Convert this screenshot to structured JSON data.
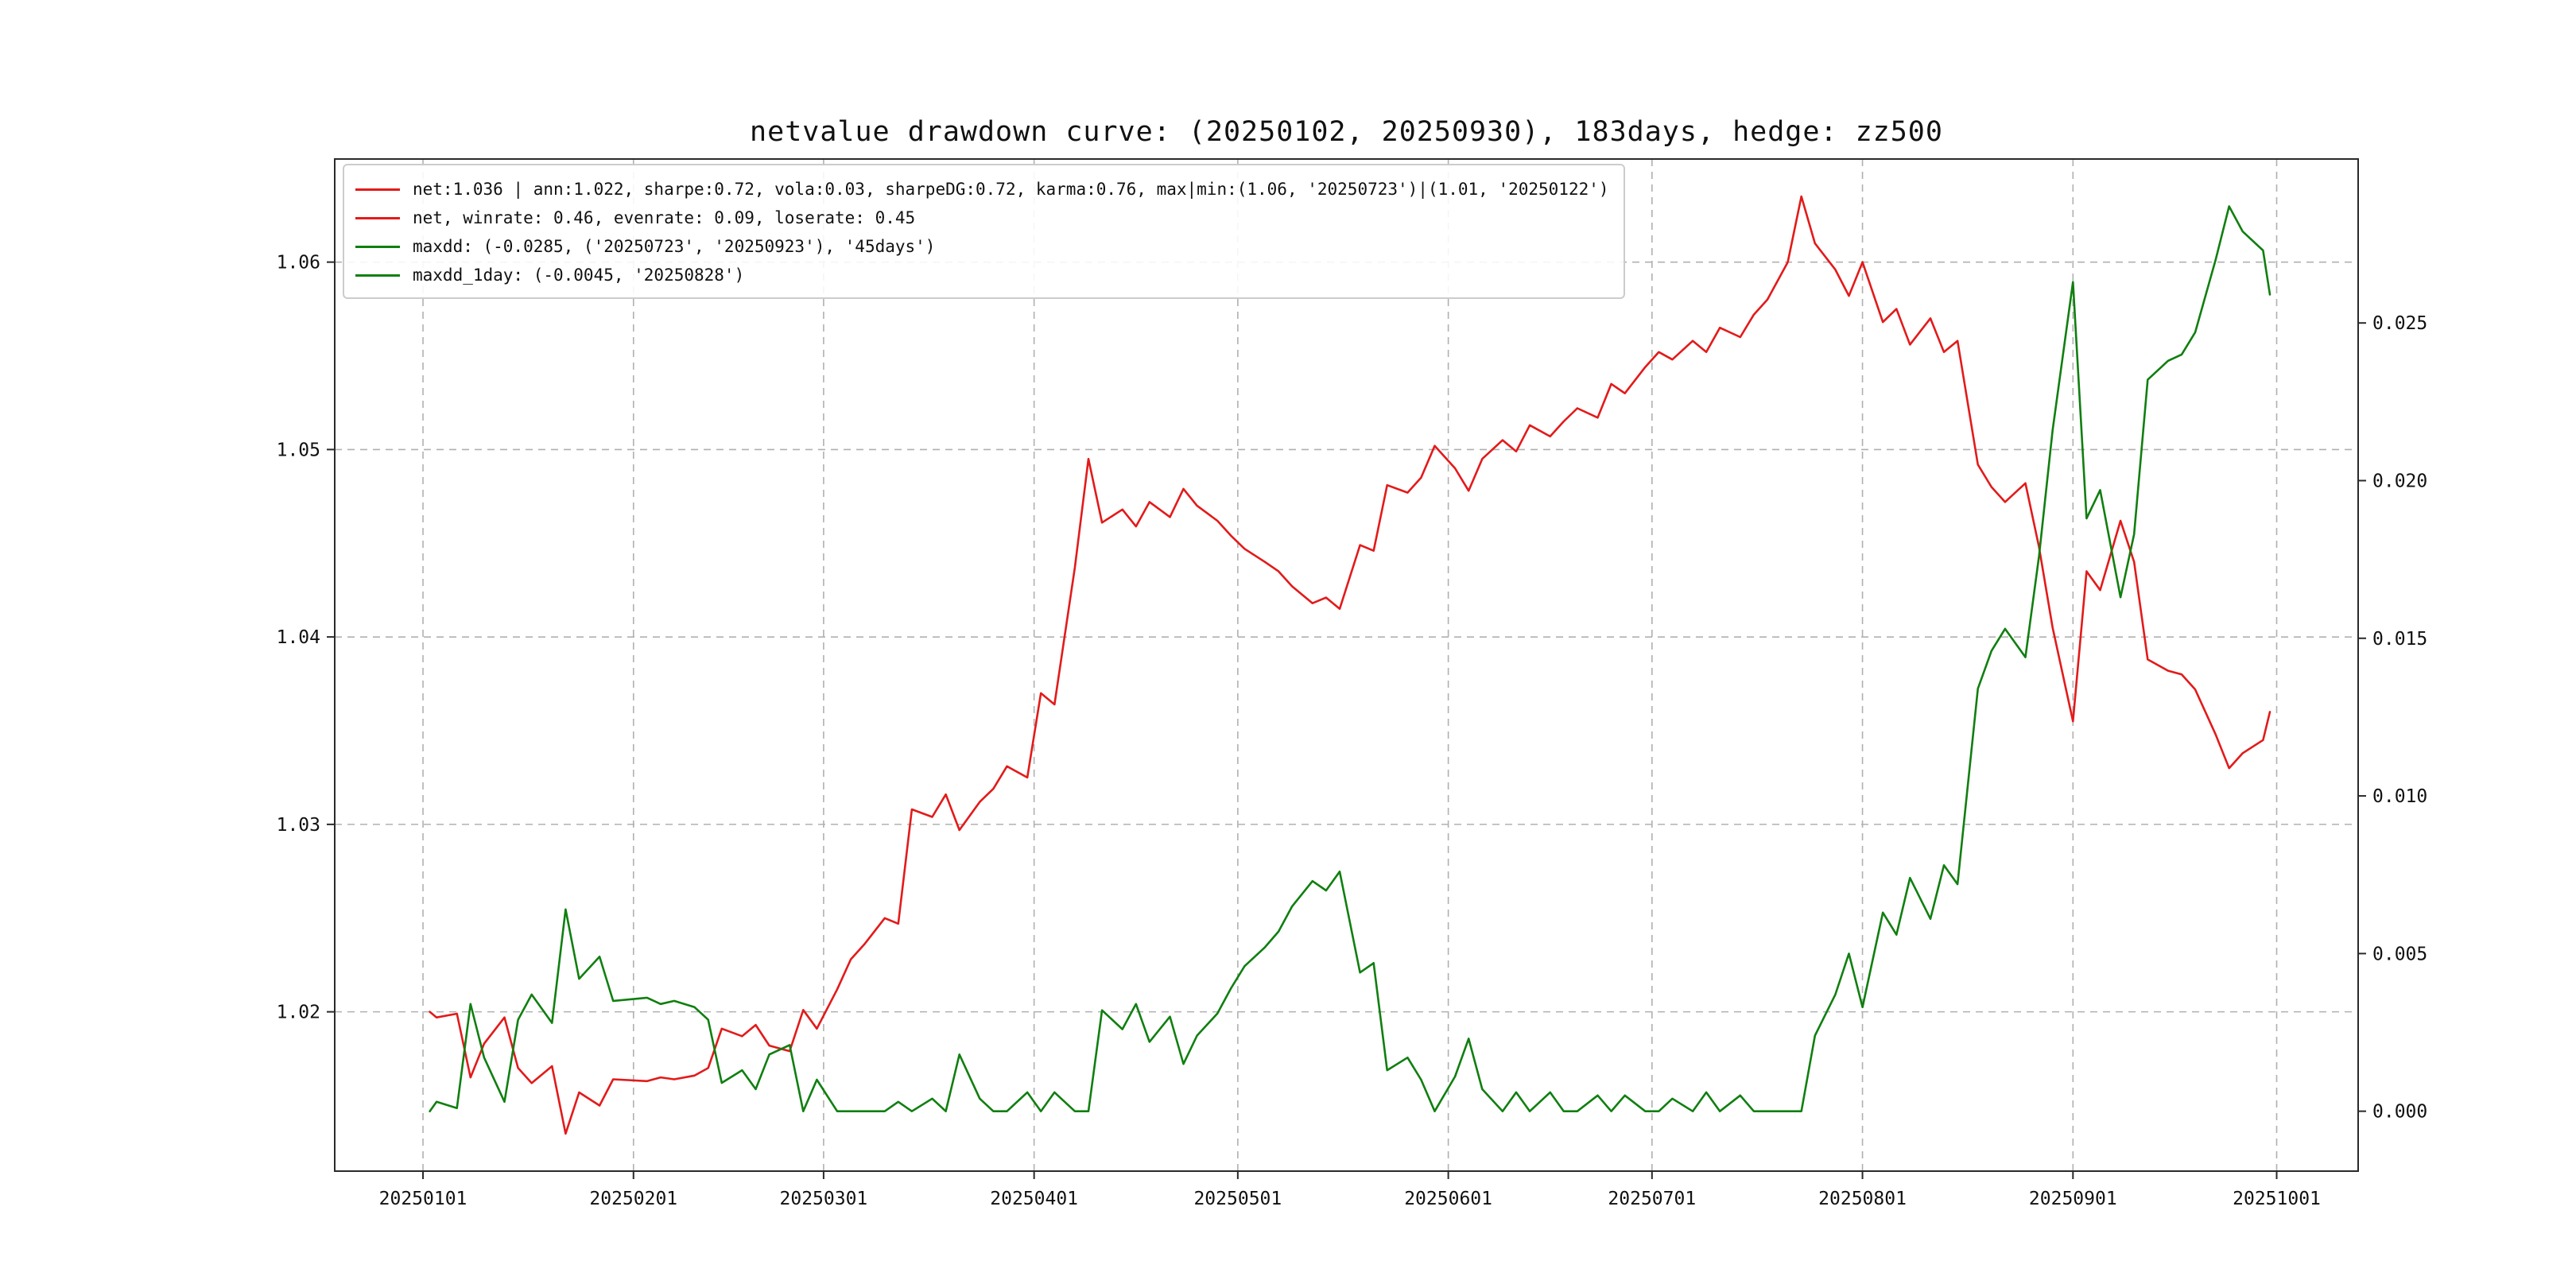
{
  "page": {
    "background": "#ffffff"
  },
  "chart_data": {
    "type": "line",
    "title": "netvalue drawdown curve: (20250102, 20250930), 183days, hedge: zz500",
    "grid": true,
    "legend_position": "upper-left",
    "x_tick_labels": [
      "20250101",
      "20250201",
      "20250301",
      "20250401",
      "20250501",
      "20250601",
      "20250701",
      "20250801",
      "20250901",
      "20251001"
    ],
    "x_tick_days": [
      1,
      32,
      60,
      91,
      121,
      152,
      182,
      213,
      244,
      274
    ],
    "x_range_days": [
      -12,
      286
    ],
    "left_axis": {
      "ticks": [
        1.02,
        1.03,
        1.04,
        1.05,
        1.06
      ],
      "tick_labels": [
        "1.02",
        "1.03",
        "1.04",
        "1.05",
        "1.06"
      ],
      "range": [
        1.0115,
        1.0655
      ]
    },
    "right_axis": {
      "ticks": [
        0.0,
        0.005,
        0.01,
        0.015,
        0.02,
        0.025
      ],
      "tick_labels": [
        "0.000",
        "0.005",
        "0.010",
        "0.015",
        "0.020",
        "0.025"
      ],
      "range": [
        -0.0019,
        0.0302
      ]
    },
    "colors": {
      "net": "#e31a1a",
      "drawdown": "#107f10"
    },
    "days": [
      2,
      3,
      6,
      8,
      10,
      13,
      15,
      17,
      20,
      22,
      24,
      27,
      29,
      34,
      36,
      38,
      41,
      43,
      45,
      48,
      50,
      52,
      55,
      57,
      59,
      62,
      64,
      66,
      69,
      71,
      73,
      76,
      78,
      80,
      83,
      85,
      87,
      90,
      92,
      94,
      97,
      99,
      101,
      104,
      106,
      108,
      111,
      113,
      115,
      118,
      120,
      122,
      125,
      127,
      129,
      132,
      134,
      136,
      139,
      141,
      143,
      146,
      148,
      150,
      153,
      155,
      157,
      160,
      162,
      164,
      167,
      169,
      171,
      174,
      176,
      178,
      181,
      183,
      185,
      188,
      190,
      192,
      195,
      197,
      199,
      202,
      204,
      206,
      209,
      211,
      213,
      216,
      218,
      220,
      223,
      225,
      227,
      230,
      232,
      234,
      237,
      239,
      241,
      244,
      246,
      248,
      251,
      253,
      255,
      258,
      260,
      262,
      265,
      267,
      269,
      272,
      273
    ],
    "series": [
      {
        "name": "net",
        "axis": "left",
        "color": "#e31a1a",
        "values": [
          1.02,
          1.0197,
          1.0199,
          1.0165,
          1.0183,
          1.0197,
          1.017,
          1.0162,
          1.0171,
          1.0135,
          1.0157,
          1.015,
          1.0164,
          1.0163,
          1.0165,
          1.0164,
          1.0166,
          1.017,
          1.0191,
          1.0187,
          1.0193,
          1.0182,
          1.0179,
          1.0201,
          1.0191,
          1.0212,
          1.0228,
          1.0236,
          1.025,
          1.0247,
          1.0308,
          1.0304,
          1.0316,
          1.0297,
          1.0312,
          1.0319,
          1.0331,
          1.0325,
          1.037,
          1.0364,
          1.0437,
          1.0495,
          1.0461,
          1.0468,
          1.0459,
          1.0472,
          1.0464,
          1.0479,
          1.047,
          1.0462,
          1.0454,
          1.0447,
          1.044,
          1.0435,
          1.0427,
          1.0418,
          1.0421,
          1.0415,
          1.0449,
          1.0446,
          1.0481,
          1.0477,
          1.0485,
          1.0502,
          1.049,
          1.0478,
          1.0495,
          1.0505,
          1.0499,
          1.0513,
          1.0507,
          1.0515,
          1.0522,
          1.0517,
          1.0535,
          1.053,
          1.0544,
          1.0552,
          1.0548,
          1.0558,
          1.0552,
          1.0565,
          1.056,
          1.0572,
          1.058,
          1.06,
          1.0635,
          1.061,
          1.0596,
          1.0582,
          1.06,
          1.0568,
          1.0575,
          1.0556,
          1.057,
          1.0552,
          1.0558,
          1.0492,
          1.048,
          1.0472,
          1.0482,
          1.0448,
          1.0405,
          1.0355,
          1.0435,
          1.0425,
          1.0462,
          1.044,
          1.0388,
          1.0382,
          1.038,
          1.0372,
          1.0348,
          1.033,
          1.0338,
          1.0345,
          1.036
        ]
      },
      {
        "name": "drawdown",
        "axis": "right",
        "color": "#107f10",
        "values": [
          0.0,
          0.0003,
          0.0001,
          0.0034,
          0.0017,
          0.0003,
          0.0029,
          0.0037,
          0.0028,
          0.0064,
          0.0042,
          0.0049,
          0.0035,
          0.0036,
          0.0034,
          0.0035,
          0.0033,
          0.0029,
          0.0009,
          0.0013,
          0.0007,
          0.0018,
          0.0021,
          0.0,
          0.001,
          0.0,
          0.0,
          0.0,
          0.0,
          0.0003,
          0.0,
          0.0004,
          0.0,
          0.0018,
          0.0004,
          0.0,
          0.0,
          0.0006,
          0.0,
          0.0006,
          0.0,
          0.0,
          0.0032,
          0.0026,
          0.0034,
          0.0022,
          0.003,
          0.0015,
          0.0024,
          0.0031,
          0.0039,
          0.0046,
          0.0052,
          0.0057,
          0.0065,
          0.0073,
          0.007,
          0.0076,
          0.0044,
          0.0047,
          0.0013,
          0.0017,
          0.001,
          0.0,
          0.0011,
          0.0023,
          0.0007,
          0.0,
          0.0006,
          0.0,
          0.0006,
          0.0,
          0.0,
          0.0005,
          0.0,
          0.0005,
          0.0,
          0.0,
          0.0004,
          0.0,
          0.0006,
          0.0,
          0.0005,
          0.0,
          0.0,
          0.0,
          0.0,
          0.0024,
          0.0037,
          0.005,
          0.0033,
          0.0063,
          0.0056,
          0.0074,
          0.0061,
          0.0078,
          0.0072,
          0.0134,
          0.0146,
          0.0153,
          0.0144,
          0.0176,
          0.0216,
          0.0263,
          0.0188,
          0.0197,
          0.0163,
          0.0183,
          0.0232,
          0.0238,
          0.024,
          0.0247,
          0.027,
          0.0287,
          0.0279,
          0.0273,
          0.0259
        ]
      }
    ],
    "legend": [
      {
        "color": "#e31a1a",
        "label": "net:1.036 | ann:1.022, sharpe:0.72, vola:0.03, sharpeDG:0.72, karma:0.76, max|min:(1.06, '20250723')|(1.01, '20250122')"
      },
      {
        "color": "#e31a1a",
        "label": "net, winrate: 0.46, evenrate: 0.09, loserate: 0.45"
      },
      {
        "color": "#107f10",
        "label": "maxdd: (-0.0285, ('20250723', '20250923'), '45days')"
      },
      {
        "color": "#107f10",
        "label": "maxdd_1day: (-0.0045, '20250828')"
      }
    ]
  }
}
